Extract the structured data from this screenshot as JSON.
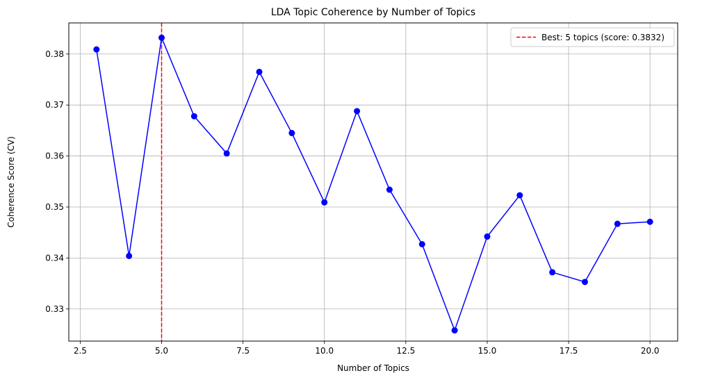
{
  "chart_data": {
    "type": "line",
    "title": "LDA Topic Coherence by Number of Topics",
    "xlabel": "Number of Topics",
    "ylabel": "Coherence Score (CV)",
    "xlim": [
      2.15,
      20.85
    ],
    "ylim": [
      0.3237,
      0.3861
    ],
    "xticks": [
      2.5,
      5.0,
      7.5,
      10.0,
      12.5,
      15.0,
      17.5,
      20.0
    ],
    "xtick_labels": [
      "2.5",
      "5.0",
      "7.5",
      "10.0",
      "12.5",
      "15.0",
      "17.5",
      "20.0"
    ],
    "yticks": [
      0.33,
      0.34,
      0.35,
      0.36,
      0.37,
      0.38
    ],
    "ytick_labels": [
      "0.33",
      "0.34",
      "0.35",
      "0.36",
      "0.37",
      "0.38"
    ],
    "grid": true,
    "legend_position": "top-right",
    "series": [
      {
        "x": [
          3,
          4,
          5,
          6,
          7,
          8,
          9,
          10,
          11,
          12,
          13,
          14,
          15,
          16,
          17,
          18,
          19,
          20
        ],
        "values": [
          0.3809,
          0.3404,
          0.3832,
          0.3678,
          0.3605,
          0.3765,
          0.3645,
          0.3509,
          0.3688,
          0.3534,
          0.3427,
          0.3258,
          0.3442,
          0.3523,
          0.3372,
          0.3353,
          0.3467,
          0.3471
        ],
        "color": "#0000ff"
      }
    ],
    "reference_line": {
      "x": 5,
      "label": "Best: 5 topics (score: 0.3832)",
      "color": "#ff0000",
      "style": "dashed"
    }
  }
}
